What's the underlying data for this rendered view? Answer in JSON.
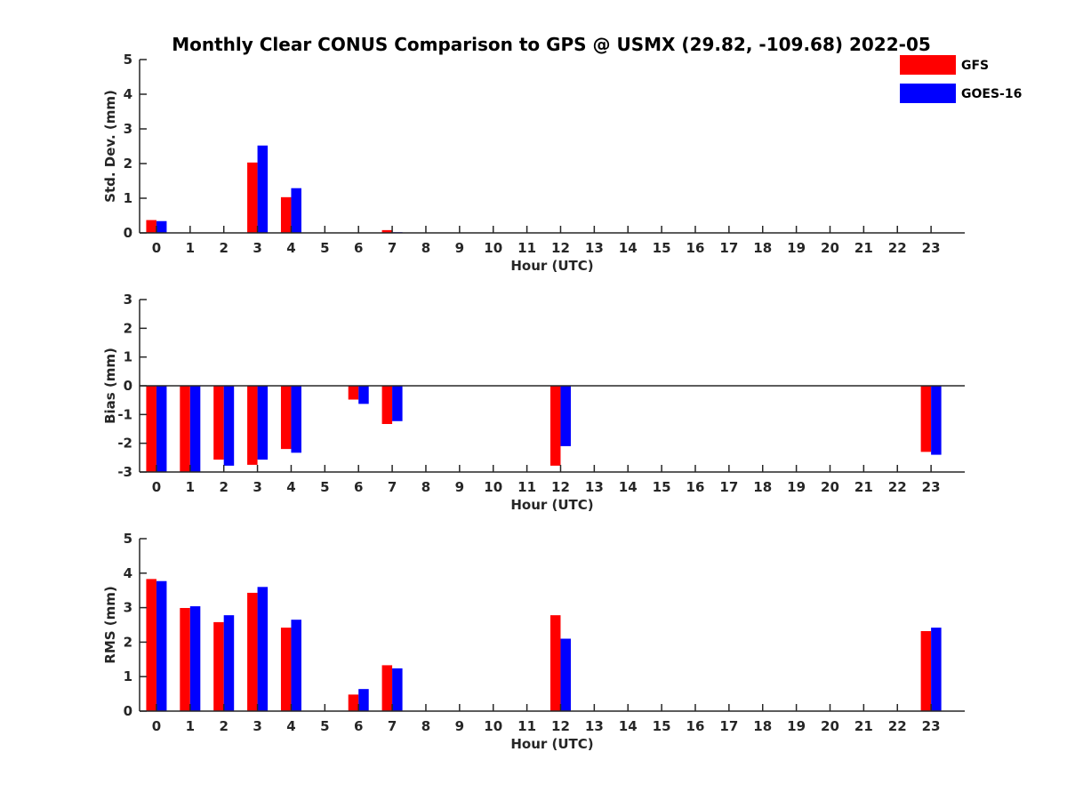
{
  "figure": {
    "title": "Monthly Clear CONUS Comparison to GPS @ USMX (29.82, -109.68) 2022-05"
  },
  "legend": {
    "placement": "top-right",
    "items": [
      {
        "label": "GFS",
        "color": "#ff0000"
      },
      {
        "label": "GOES-16",
        "color": "#0000ff"
      }
    ]
  },
  "chart_data": [
    {
      "type": "bar",
      "xlabel": "Hour (UTC)",
      "ylabel": "Std. Dev. (mm)",
      "ylim": [
        0,
        5
      ],
      "yticks": [
        0,
        1,
        2,
        3,
        4,
        5
      ],
      "categories": [
        "0",
        "1",
        "2",
        "3",
        "4",
        "5",
        "6",
        "7",
        "8",
        "9",
        "10",
        "11",
        "12",
        "13",
        "14",
        "15",
        "16",
        "17",
        "18",
        "19",
        "20",
        "21",
        "22",
        "23"
      ],
      "series": [
        {
          "name": "GFS",
          "color": "#ff0000",
          "values": [
            0.37,
            null,
            null,
            2.03,
            1.03,
            null,
            null,
            0.08,
            null,
            null,
            null,
            null,
            null,
            null,
            null,
            null,
            null,
            null,
            null,
            null,
            null,
            null,
            null,
            null
          ]
        },
        {
          "name": "GOES-16",
          "color": "#0000ff",
          "values": [
            0.34,
            null,
            null,
            2.52,
            1.29,
            null,
            null,
            0.02,
            null,
            null,
            null,
            null,
            null,
            null,
            null,
            null,
            null,
            null,
            null,
            null,
            null,
            null,
            null,
            null
          ]
        }
      ]
    },
    {
      "type": "bar",
      "xlabel": "Hour (UTC)",
      "ylabel": "Bias (mm)",
      "ylim": [
        -3,
        3
      ],
      "yticks": [
        -3,
        -2,
        -1,
        0,
        1,
        2,
        3
      ],
      "zero_line": true,
      "categories": [
        "0",
        "1",
        "2",
        "3",
        "4",
        "5",
        "6",
        "7",
        "8",
        "9",
        "10",
        "11",
        "12",
        "13",
        "14",
        "15",
        "16",
        "17",
        "18",
        "19",
        "20",
        "21",
        "22",
        "23"
      ],
      "series": [
        {
          "name": "GFS",
          "color": "#ff0000",
          "values": [
            -3.0,
            -3.0,
            -2.57,
            -2.75,
            -2.2,
            null,
            -0.48,
            -1.33,
            null,
            null,
            null,
            null,
            -2.78,
            null,
            null,
            null,
            null,
            null,
            null,
            null,
            null,
            null,
            null,
            -2.3
          ]
        },
        {
          "name": "GOES-16",
          "color": "#0000ff",
          "values": [
            -3.0,
            -3.0,
            -2.78,
            -2.57,
            -2.33,
            null,
            -0.63,
            -1.23,
            null,
            null,
            null,
            null,
            -2.1,
            null,
            null,
            null,
            null,
            null,
            null,
            null,
            null,
            null,
            null,
            -2.4
          ]
        }
      ]
    },
    {
      "type": "bar",
      "xlabel": "Hour (UTC)",
      "ylabel": "RMS (mm)",
      "ylim": [
        0,
        5
      ],
      "yticks": [
        0,
        1,
        2,
        3,
        4,
        5
      ],
      "categories": [
        "0",
        "1",
        "2",
        "3",
        "4",
        "5",
        "6",
        "7",
        "8",
        "9",
        "10",
        "11",
        "12",
        "13",
        "14",
        "15",
        "16",
        "17",
        "18",
        "19",
        "20",
        "21",
        "22",
        "23"
      ],
      "series": [
        {
          "name": "GFS",
          "color": "#ff0000",
          "values": [
            3.83,
            2.99,
            2.58,
            3.43,
            2.42,
            null,
            0.48,
            1.33,
            null,
            null,
            null,
            null,
            2.78,
            null,
            null,
            null,
            null,
            null,
            null,
            null,
            null,
            null,
            null,
            2.32
          ]
        },
        {
          "name": "GOES-16",
          "color": "#0000ff",
          "values": [
            3.77,
            3.04,
            2.78,
            3.6,
            2.65,
            null,
            0.64,
            1.24,
            null,
            null,
            null,
            null,
            2.1,
            null,
            null,
            null,
            null,
            null,
            null,
            null,
            null,
            null,
            null,
            2.42
          ]
        }
      ]
    }
  ]
}
